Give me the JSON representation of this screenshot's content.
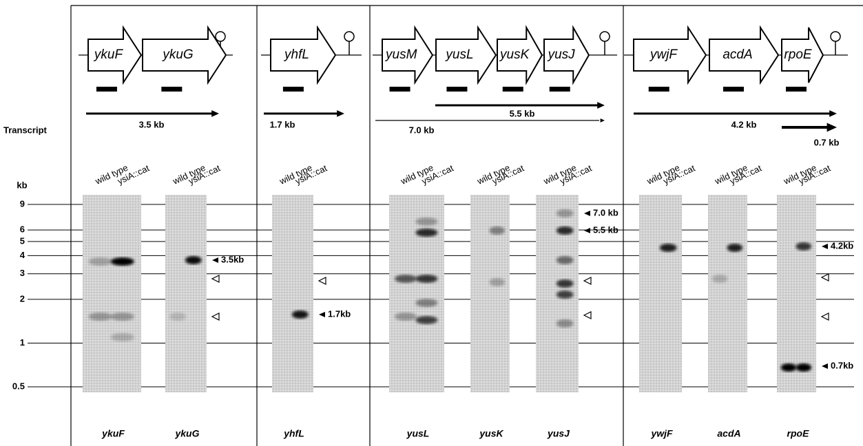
{
  "row_label": "Transcript",
  "lanes": [
    "wild type",
    "ysiA::cat"
  ],
  "size_axis": {
    "title": "kb",
    "ticks": [
      9,
      6,
      5,
      4,
      3,
      2,
      1,
      0.5
    ]
  },
  "panels": [
    {
      "genes": [
        "ykuF",
        "ykuG"
      ],
      "transcripts": [
        "3.5 kb"
      ],
      "blots": [
        {
          "label": "ykuF"
        },
        {
          "label": "ykuG",
          "annotations": [
            "3.5kb"
          ]
        }
      ]
    },
    {
      "genes": [
        "yhfL"
      ],
      "transcripts": [
        "1.7 kb"
      ],
      "blots": [
        {
          "label": "yhfL",
          "annotations": [
            "1.7kb"
          ]
        }
      ]
    },
    {
      "genes": [
        "yusM",
        "yusL",
        "yusK",
        "yusJ"
      ],
      "transcripts": [
        "5.5 kb",
        "7.0 kb"
      ],
      "blots": [
        {
          "label": "yusL"
        },
        {
          "label": "yusK"
        },
        {
          "label": "yusJ",
          "annotations": [
            "7.0 kb",
            "5.5 kb"
          ]
        }
      ]
    },
    {
      "genes": [
        "ywjF",
        "acdA",
        "rpoE"
      ],
      "transcripts": [
        "4.2 kb",
        "0.7 kb"
      ],
      "blots": [
        {
          "label": "ywjF"
        },
        {
          "label": "acdA"
        },
        {
          "label": "rpoE",
          "annotations": [
            "4.2kb",
            "0.7kb"
          ]
        }
      ]
    }
  ]
}
